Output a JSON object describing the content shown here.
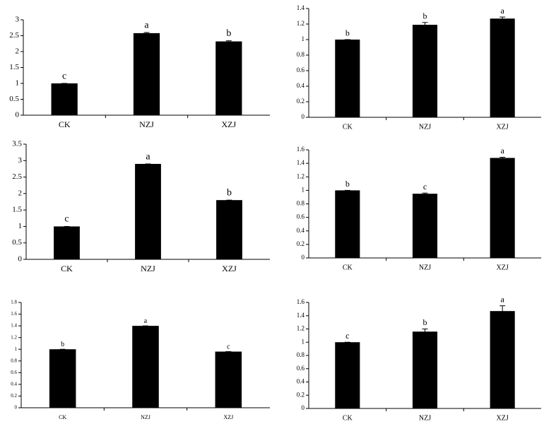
{
  "chart_data": [
    {
      "type": "bar",
      "categories": [
        "CK",
        "NZJ",
        "XZJ"
      ],
      "values": [
        1.0,
        2.58,
        2.32
      ],
      "errors": [
        0,
        0.02,
        0.02
      ],
      "annotations": [
        "c",
        "a",
        "b"
      ],
      "color": "#000000",
      "ylim": [
        0,
        3
      ],
      "yticks": [
        0,
        0.5,
        1,
        1.5,
        2,
        2.5,
        3
      ]
    },
    {
      "type": "bar",
      "categories": [
        "CK",
        "NZJ",
        "XZJ"
      ],
      "values": [
        1.0,
        1.19,
        1.27
      ],
      "errors": [
        0,
        0.03,
        0.02
      ],
      "annotations": [
        "b",
        "b",
        "a"
      ],
      "color": "#000000",
      "ylim": [
        0,
        1.4
      ],
      "yticks": [
        0,
        0.2,
        0.4,
        0.6,
        0.8,
        1,
        1.2,
        1.4
      ]
    },
    {
      "type": "bar",
      "categories": [
        "CK",
        "NZJ",
        "XZJ"
      ],
      "values": [
        1.0,
        2.9,
        1.8
      ],
      "errors": [
        0,
        0,
        0
      ],
      "annotations": [
        "c",
        "a",
        "b"
      ],
      "color": "#000000",
      "ylim": [
        0,
        3.5
      ],
      "yticks": [
        0,
        0.5,
        1,
        1.5,
        2,
        2.5,
        3,
        3.5
      ]
    },
    {
      "type": "bar",
      "categories": [
        "CK",
        "NZJ",
        "XZJ"
      ],
      "values": [
        1.0,
        0.95,
        1.48
      ],
      "errors": [
        0,
        0.01,
        0.01
      ],
      "annotations": [
        "b",
        "c",
        "a"
      ],
      "color": "#000000",
      "ylim": [
        0,
        1.6
      ],
      "yticks": [
        0,
        0.2,
        0.4,
        0.6,
        0.8,
        1,
        1.2,
        1.4,
        1.6
      ]
    },
    {
      "type": "bar",
      "categories": [
        "CK",
        "NZJ",
        "XZJ"
      ],
      "values": [
        1.0,
        1.4,
        0.96
      ],
      "errors": [
        0,
        0,
        0
      ],
      "annotations": [
        "b",
        "a",
        "c"
      ],
      "color": "#000000",
      "ylim": [
        0,
        1.8
      ],
      "yticks": [
        0,
        0.2,
        0.4,
        0.6,
        0.8,
        1,
        1.2,
        1.4,
        1.6,
        1.8
      ]
    },
    {
      "type": "bar",
      "categories": [
        "CK",
        "NZJ",
        "XZJ"
      ],
      "values": [
        1.0,
        1.16,
        1.47
      ],
      "errors": [
        0,
        0.04,
        0.08
      ],
      "annotations": [
        "c",
        "b",
        "a"
      ],
      "color": "#000000",
      "ylim": [
        0,
        1.6
      ],
      "yticks": [
        0,
        0.2,
        0.4,
        0.6,
        0.8,
        1,
        1.2,
        1.4,
        1.6
      ]
    }
  ]
}
